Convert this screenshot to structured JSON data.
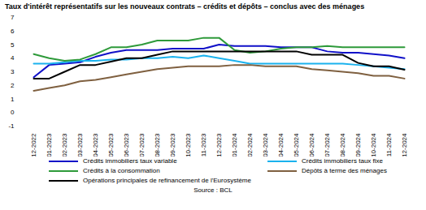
{
  "chart_data": {
    "type": "line",
    "title": "Taux d'intérêt représentatifs sur les nouveaux contrats – crédits et dépôts – conclus avec des ménages",
    "caption": "Source : BCL",
    "categories": [
      "12-2022",
      "01-2023",
      "02-2023",
      "03-2023",
      "04-2023",
      "05-2023",
      "06-2023",
      "07-2023",
      "08-2023",
      "09-2023",
      "10-2023",
      "11-2023",
      "12-2023",
      "01-2024",
      "02-2024",
      "03-2024",
      "04-2024",
      "05-2024",
      "06-2024",
      "07-2024",
      "08-2024",
      "09-2024",
      "10-2024",
      "11-2024",
      "12-2024"
    ],
    "series": [
      {
        "name": "Crédits immobiliers taux variable",
        "color": "#1010c8",
        "values": [
          2.6,
          3.5,
          3.6,
          3.7,
          4.1,
          4.4,
          4.6,
          4.6,
          4.6,
          4.7,
          4.7,
          4.7,
          5.0,
          4.9,
          4.9,
          4.9,
          4.8,
          4.8,
          4.8,
          4.5,
          4.4,
          4.4,
          4.3,
          4.2,
          4.0
        ]
      },
      {
        "name": "Crédits immobiliers taux fixe",
        "color": "#1ab2ee",
        "values": [
          3.6,
          3.6,
          3.7,
          3.8,
          3.8,
          3.9,
          3.9,
          4.0,
          4.0,
          4.1,
          4.0,
          4.2,
          4.0,
          3.8,
          3.6,
          3.6,
          3.6,
          3.6,
          3.6,
          3.6,
          3.6,
          3.5,
          3.4,
          3.3,
          3.2
        ]
      },
      {
        "name": "Crédits à la consommation",
        "color": "#2e9a3a",
        "values": [
          4.3,
          4.0,
          3.8,
          3.9,
          4.3,
          4.8,
          4.8,
          5.0,
          5.3,
          5.3,
          5.3,
          5.5,
          5.5,
          4.6,
          4.4,
          4.5,
          4.7,
          4.8,
          4.8,
          4.9,
          4.8,
          4.8,
          4.8,
          4.8,
          4.8
        ]
      },
      {
        "name": "Dépôts à terme des ménages",
        "color": "#7f6040",
        "values": [
          1.6,
          1.8,
          2.0,
          2.3,
          2.4,
          2.6,
          2.8,
          3.0,
          3.2,
          3.3,
          3.4,
          3.4,
          3.4,
          3.5,
          3.5,
          3.4,
          3.4,
          3.4,
          3.2,
          3.1,
          3.0,
          2.9,
          2.7,
          2.7,
          2.5
        ]
      },
      {
        "name": "Opérations principales de refinancement de l'Eurosystème",
        "color": "#000000",
        "values": [
          2.5,
          2.5,
          3.0,
          3.5,
          3.5,
          3.75,
          4.0,
          4.0,
          4.25,
          4.5,
          4.5,
          4.5,
          4.5,
          4.5,
          4.5,
          4.5,
          4.5,
          4.5,
          4.25,
          4.25,
          4.25,
          3.65,
          3.4,
          3.4,
          3.15
        ]
      }
    ],
    "ylim": [
      -1,
      7
    ],
    "yticks": [
      -1,
      0,
      1,
      2,
      3,
      4,
      5,
      6,
      7
    ],
    "grid": false,
    "legend": "bottom"
  }
}
